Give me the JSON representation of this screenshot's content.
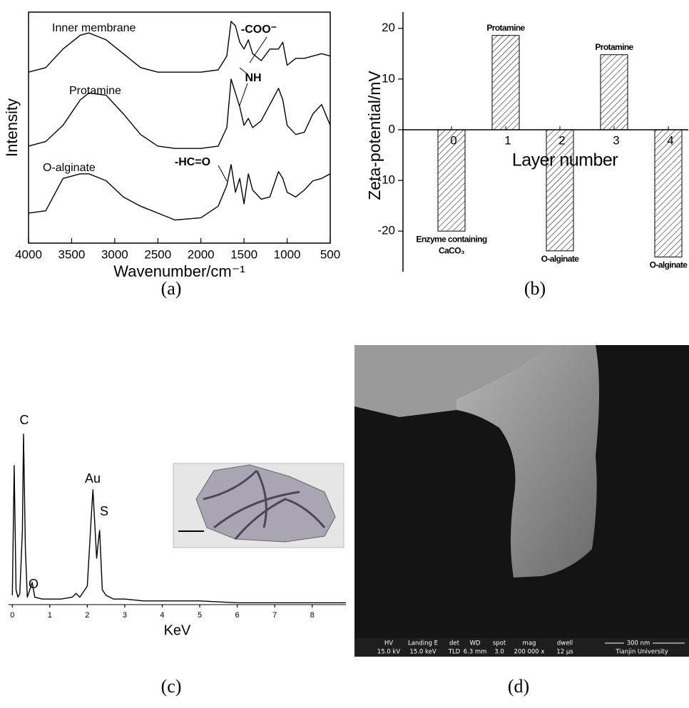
{
  "chart_data": [
    {
      "type": "line",
      "panel_label": "(a)",
      "xlabel": "Wavenumber/cm⁻¹",
      "ylabel": "Intensity",
      "x": [
        4000,
        3800,
        3600,
        3400,
        3300,
        3100,
        2900,
        2700,
        2500,
        2300,
        2000,
        1800,
        1700,
        1650,
        1600,
        1550,
        1500,
        1450,
        1400,
        1300,
        1200,
        1100,
        1050,
        1000,
        900,
        800,
        700,
        600,
        500
      ],
      "xlim": [
        4000,
        500
      ],
      "xticks": [
        4000,
        3500,
        3000,
        2500,
        2000,
        1500,
        1000,
        500
      ],
      "ylim": [
        0,
        100
      ],
      "series": [
        {
          "name": "Inner membrane",
          "color": "#000000",
          "values": [
            74,
            76,
            84,
            90,
            91,
            88,
            82,
            76,
            74,
            74,
            74,
            75,
            81,
            96,
            94,
            87,
            84,
            88,
            82,
            79,
            84,
            84,
            87,
            77,
            80,
            80,
            81,
            82,
            81
          ]
        },
        {
          "name": "Protamine",
          "color": "#000000",
          "values": [
            42,
            44,
            51,
            62,
            65,
            64,
            56,
            47,
            42,
            41,
            41,
            42,
            50,
            71,
            65,
            59,
            51,
            54,
            50,
            53,
            60,
            67,
            62,
            51,
            47,
            48,
            56,
            60,
            51
          ]
        },
        {
          "name": "O-alginate",
          "color": "#000000",
          "values": [
            13,
            14,
            28,
            30,
            30,
            27,
            20,
            16,
            13,
            10,
            11,
            16,
            25,
            34,
            22,
            28,
            17,
            30,
            23,
            19,
            20,
            31,
            28,
            22,
            20,
            23,
            27,
            28,
            30
          ]
        }
      ],
      "annotations": [
        "-COO⁻",
        "NH",
        "-HC=O"
      ]
    },
    {
      "type": "bar",
      "panel_label": "(b)",
      "xlabel": "Layer number",
      "ylabel": "Zeta-potential/mV",
      "categories": [
        "0",
        "1",
        "2",
        "3",
        "4"
      ],
      "values": [
        -20,
        18.6,
        -23.9,
        14.8,
        -25.1
      ],
      "color": "#000000",
      "ylim": [
        -28,
        23.2
      ],
      "yticks": [
        -20,
        -10,
        0,
        10,
        20
      ],
      "bar_labels": [
        [
          "Enzyme containing",
          "CaCO₃"
        ],
        [
          "Protamine"
        ],
        [
          "O-alginate"
        ],
        [
          "Protamine"
        ],
        [
          "O-alginate"
        ]
      ]
    },
    {
      "type": "line",
      "panel_label": "(c)",
      "xlabel": "KeV",
      "x": [
        0,
        0.05,
        0.1,
        0.15,
        0.2,
        0.27,
        0.3,
        0.35,
        0.4,
        0.5,
        0.53,
        0.6,
        0.8,
        1.0,
        1.3,
        1.6,
        1.7,
        1.8,
        2.0,
        2.1,
        2.15,
        2.25,
        2.3,
        2.33,
        2.4,
        2.5,
        2.7,
        3.0,
        3.5,
        4,
        5,
        6,
        7,
        8,
        8.9
      ],
      "xlim": [
        -0.1,
        8.9
      ],
      "xticks": [
        0,
        1,
        2,
        3,
        4,
        5,
        6,
        7,
        8
      ],
      "ylim": [
        0,
        100
      ],
      "values": [
        5,
        75,
        8,
        4,
        6,
        40,
        92,
        30,
        4,
        10,
        12,
        4,
        3,
        3,
        3,
        4,
        6,
        4,
        10,
        45,
        62,
        25,
        35,
        40,
        8,
        5,
        3,
        3,
        2,
        2,
        2,
        1,
        1,
        1,
        1
      ],
      "color": "#000000",
      "annotations": [
        "C",
        "O",
        "Au",
        "S"
      ]
    }
  ],
  "sem_image": {
    "panel_label": "(d)",
    "info_bar": [
      {
        "label": "HV",
        "value": "15.0 kV"
      },
      {
        "label": "Landing E",
        "value": "15.0 keV"
      },
      {
        "label": "det",
        "value": "TLD"
      },
      {
        "label": "WD",
        "value": "6.3 mm"
      },
      {
        "label": "spot",
        "value": "3.0"
      },
      {
        "label": "mag",
        "value": "200 000 x"
      },
      {
        "label": "dwell",
        "value": "12 µs"
      }
    ],
    "scale_bar": "300 nm",
    "institution": "Tianjin University"
  }
}
